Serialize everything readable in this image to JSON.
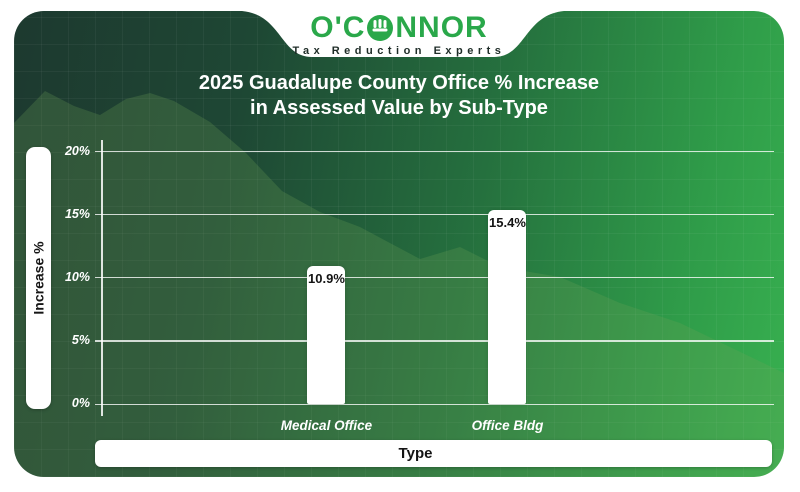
{
  "brand": {
    "name_left": "O'C",
    "name_right": "NNOR",
    "tagline": "Tax Reduction Experts",
    "logo_green": "#2aa84a",
    "tagline_color": "#1f2d28"
  },
  "chart_data": {
    "type": "bar",
    "title_lines": [
      "2025 Guadalupe County Office % Increase",
      "in Assessed Value by Sub-Type"
    ],
    "title": "2025 Guadalupe County Office % Increase in Assessed Value by Sub-Type",
    "categories": [
      "Medical Office",
      "Office Bldg"
    ],
    "values": [
      10.9,
      15.4
    ],
    "value_labels": [
      "10.9%",
      "15.4%"
    ],
    "xlabel": "Type",
    "ylabel": "Increase %",
    "ylim": [
      0,
      20
    ],
    "yticks": [
      0,
      5,
      10,
      15,
      20
    ],
    "ytick_labels": [
      "0%",
      "5%",
      "10%",
      "15%",
      "20%"
    ],
    "grid": true,
    "legend": false,
    "bar_color": "#ffffff",
    "background": "green gradient"
  },
  "colors": {
    "card_dark_green": "#1d392f",
    "card_bright_green": "#38b150",
    "gridline": "#ffffff",
    "bar": "#ffffff",
    "title_text": "#ffffff",
    "value_text": "#141414"
  }
}
